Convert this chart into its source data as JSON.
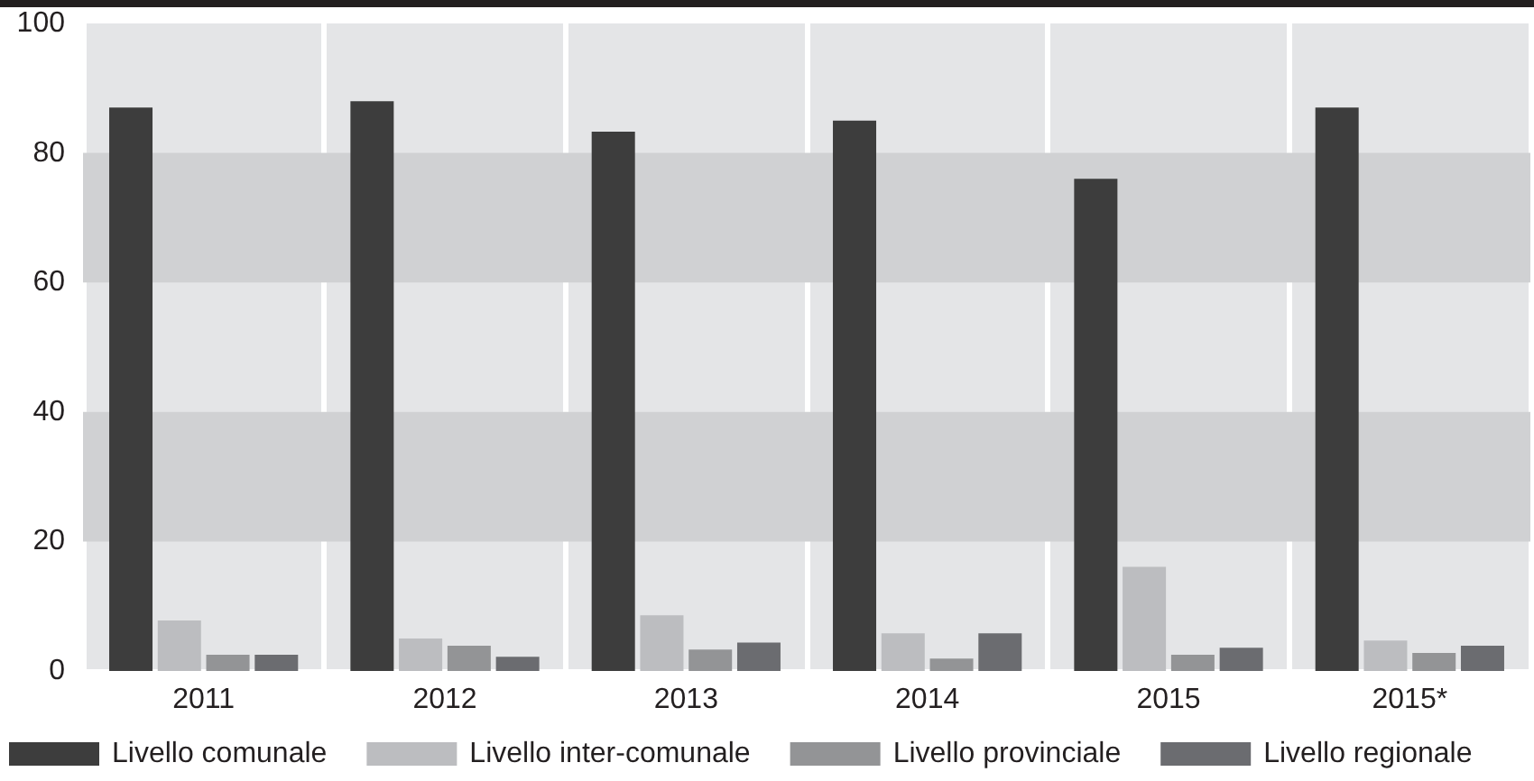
{
  "chart_data": {
    "type": "bar",
    "categories": [
      "2011",
      "2012",
      "2013",
      "2014",
      "2015",
      "2015*"
    ],
    "series": [
      {
        "name": "Livello comunale",
        "color": "#3d3d3d",
        "values": [
          87,
          88,
          83.3,
          85,
          76,
          87
        ]
      },
      {
        "name": "Livello inter-comunale",
        "color": "#bcbdc0",
        "values": [
          7.8,
          5,
          8.6,
          5.8,
          16.1,
          4.7
        ]
      },
      {
        "name": "Livello provinciale",
        "color": "#939496",
        "values": [
          2.5,
          3.9,
          3.3,
          1.9,
          2.5,
          2.8
        ]
      },
      {
        "name": "Livello regionale",
        "color": "#6b6c70",
        "values": [
          2.5,
          2.2,
          4.4,
          5.8,
          3.6,
          3.9
        ]
      }
    ],
    "ylim": [
      0,
      100
    ],
    "yticks": [
      0,
      20,
      40,
      60,
      80,
      100
    ],
    "bands": [
      {
        "axis": "y",
        "from": 20,
        "to": 40,
        "color": "#d0d1d3"
      },
      {
        "axis": "y",
        "from": 60,
        "to": 80,
        "color": "#d0d1d3"
      }
    ],
    "grid": "x",
    "legend": "bottom"
  }
}
